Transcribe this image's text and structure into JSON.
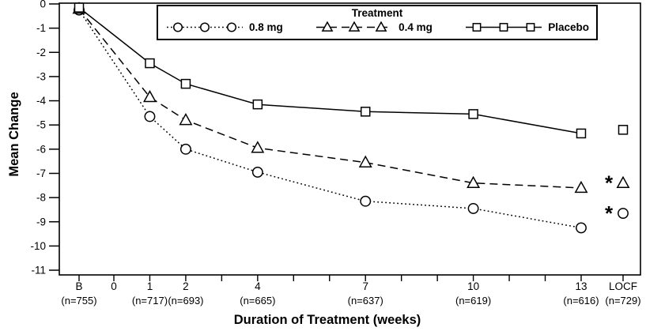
{
  "figure": {
    "background": "#ffffff",
    "ink": "#000000"
  },
  "chart_data": {
    "type": "line",
    "legend": {
      "title": "Treatment",
      "position": "top-inside"
    },
    "xlabel": "Duration of Treatment (weeks)",
    "ylabel": "Mean Change",
    "ylim": [
      -11,
      0
    ],
    "grid": "off",
    "y_ticks": [
      0,
      -1,
      -2,
      -3,
      -4,
      -5,
      -6,
      -7,
      -8,
      -9,
      -10,
      -11
    ],
    "x": [
      "B",
      1,
      2,
      4,
      7,
      10,
      13,
      "LOCF"
    ],
    "x_axis_ticks": [
      {
        "label": "B",
        "sublabel": "(n=755)",
        "week": "B"
      },
      {
        "label": "0",
        "sublabel": "",
        "week": 0
      },
      {
        "label": "1",
        "sublabel": "(n=717)",
        "week": 1
      },
      {
        "label": "2",
        "sublabel": "(n=693)",
        "week": 2
      },
      {
        "label": "4",
        "sublabel": "(n=665)",
        "week": 4
      },
      {
        "label": "7",
        "sublabel": "(n=637)",
        "week": 7
      },
      {
        "label": "10",
        "sublabel": "(n=619)",
        "week": 10
      },
      {
        "label": "13",
        "sublabel": "(n=616)",
        "week": 13
      },
      {
        "label": "LOCF",
        "sublabel": "(n=729)",
        "week": "LOCF"
      }
    ],
    "minor_tick_weeks": [
      0,
      1,
      2,
      3,
      4,
      5,
      6,
      7,
      8,
      9,
      10,
      11,
      12,
      13
    ],
    "series": [
      {
        "name": "0.8 mg",
        "marker": "circle",
        "line_style": "dotted",
        "values": [
          -0.25,
          -4.65,
          -6.0,
          -6.95,
          -8.15,
          -8.45,
          -9.25,
          -8.65
        ],
        "locf_is_isolated_point": true
      },
      {
        "name": "0.4 mg",
        "marker": "triangle",
        "line_style": "dashed",
        "values": [
          -0.2,
          -3.85,
          -4.8,
          -5.95,
          -6.55,
          -7.4,
          -7.6,
          -7.4
        ],
        "locf_is_isolated_point": true
      },
      {
        "name": "Placebo",
        "marker": "square",
        "line_style": "solid",
        "values": [
          -0.15,
          -2.45,
          -3.3,
          -4.15,
          -4.45,
          -4.55,
          -5.35,
          -5.2
        ],
        "locf_is_isolated_point": true
      }
    ],
    "annotations": [
      {
        "text": "*",
        "series": "0.4 mg",
        "x": "LOCF"
      },
      {
        "text": "*",
        "series": "0.8 mg",
        "x": "LOCF"
      }
    ]
  }
}
